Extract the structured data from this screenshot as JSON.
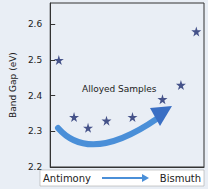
{
  "chart_data": {
    "type": "scatter",
    "ylabel": "Band Gap (eV)",
    "x_labels": [
      "Antimony",
      "Bismuth"
    ],
    "annotations": [
      "Alloyed Samples"
    ],
    "x": [
      5.6,
      15.5,
      24.6,
      36.6,
      53.5,
      73,
      85,
      95
    ],
    "values": [
      2.5,
      2.34,
      2.31,
      2.33,
      2.34,
      2.39,
      2.43,
      2.58
    ],
    "color": "#1c2a6e",
    "marker": "star",
    "xlim": [
      0,
      100
    ],
    "ylim": [
      2.2,
      2.66
    ],
    "yticks": [
      2.2,
      2.3,
      2.4,
      2.5,
      2.6
    ],
    "grid": false,
    "tick_labels": "y"
  }
}
